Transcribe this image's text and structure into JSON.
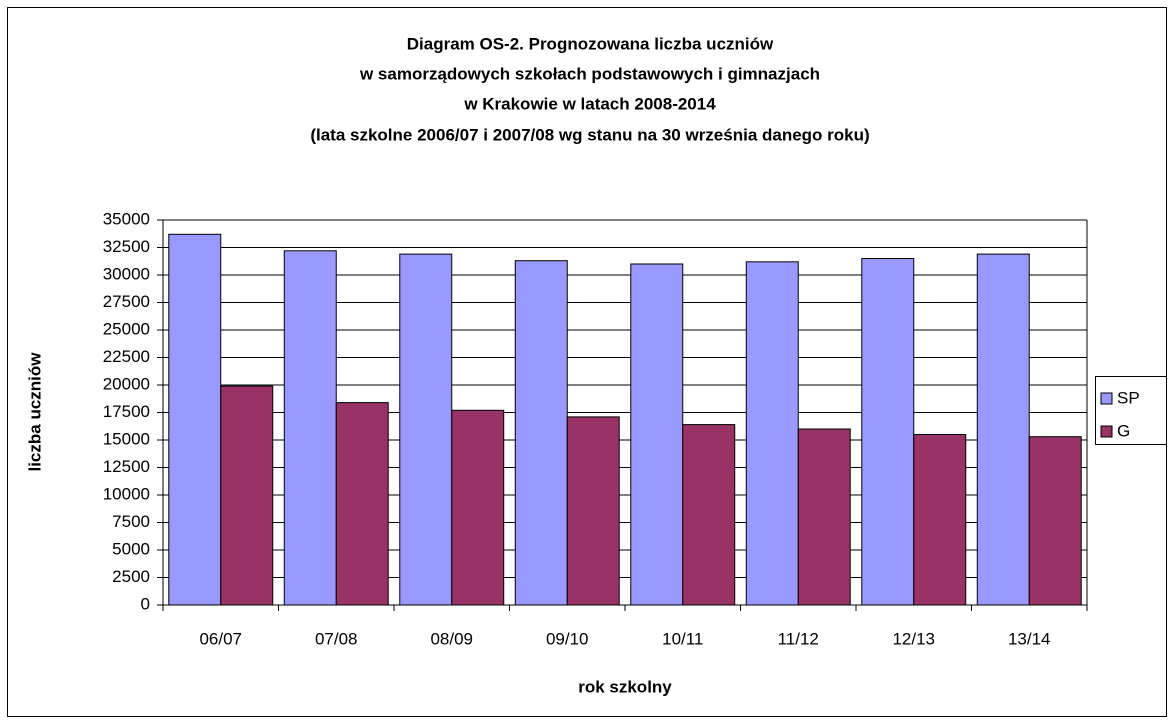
{
  "chart_data": {
    "type": "bar",
    "title": [
      "Diagram OS-2. Prognozowana liczba uczniów",
      "w samorządowych szkołach podstawowych i gimnazjach",
      "w Krakowie w latach 2008-2014",
      "(lata szkolne 2006/07 i 2007/08 wg stanu na 30 września danego roku)"
    ],
    "x_label": "rok szkolny",
    "y_label": "liczba uczniów",
    "categories": [
      "06/07",
      "07/08",
      "08/09",
      "09/10",
      "10/11",
      "11/12",
      "12/13",
      "13/14"
    ],
    "series": [
      {
        "name": "SP",
        "color": "#9999ff",
        "values": [
          33700,
          32200,
          31900,
          31300,
          31000,
          31200,
          31500,
          31900
        ]
      },
      {
        "name": "G",
        "color": "#993366",
        "values": [
          19900,
          18400,
          17700,
          17100,
          16400,
          16000,
          15500,
          15300
        ]
      }
    ],
    "ylim": [
      0,
      35000
    ],
    "yticks": [
      0,
      2500,
      5000,
      7500,
      10000,
      12500,
      15000,
      17500,
      20000,
      22500,
      25000,
      27500,
      30000,
      32500,
      35000
    ],
    "grid": true,
    "legend": "right"
  }
}
